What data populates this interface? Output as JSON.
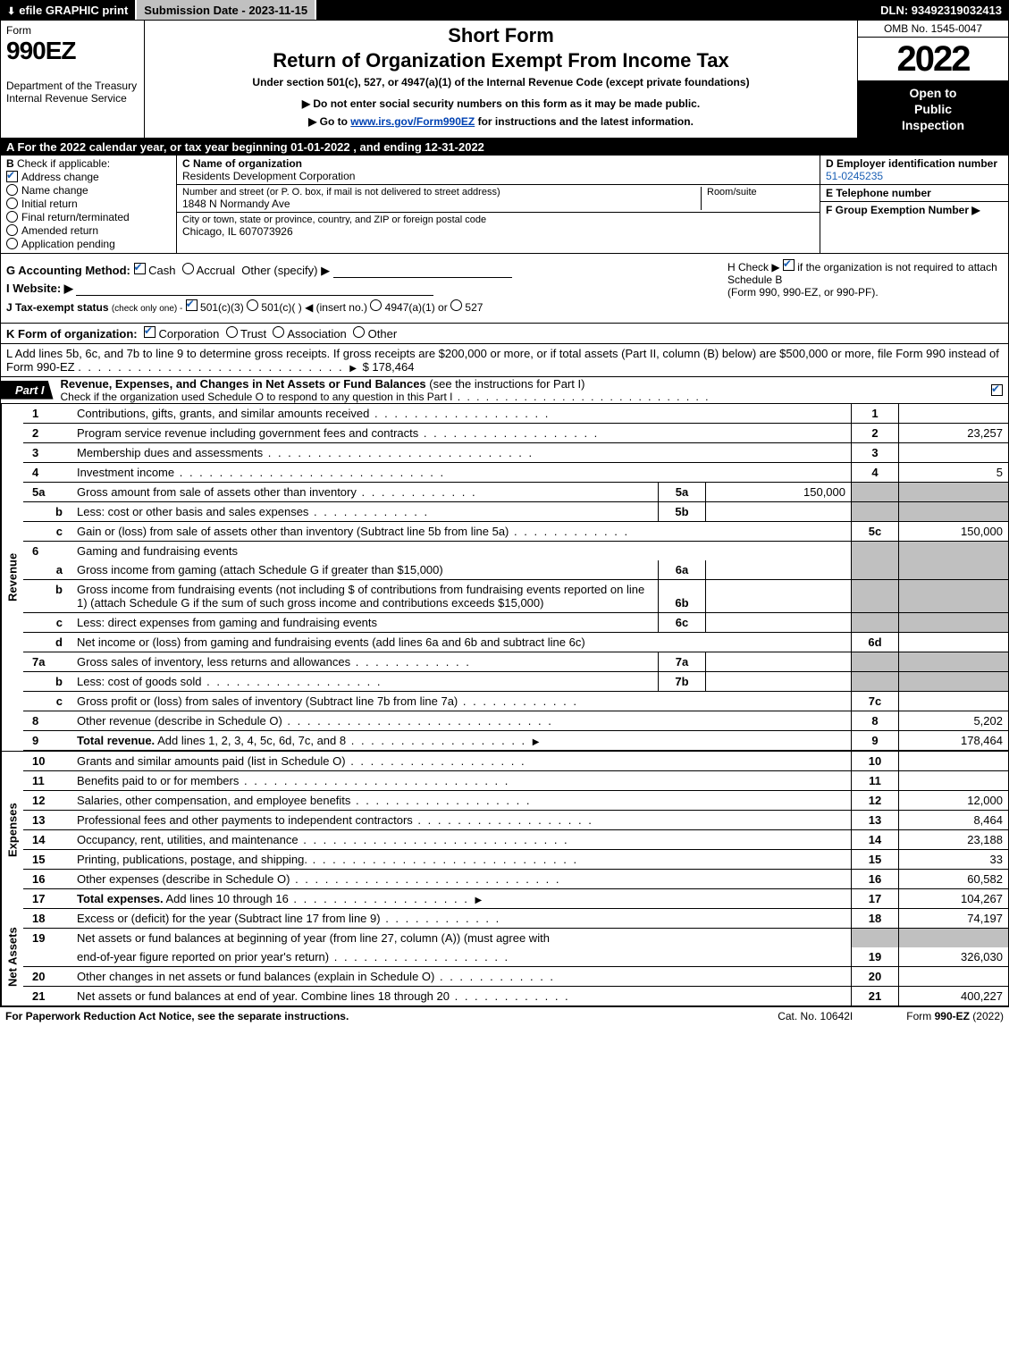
{
  "topbar": {
    "efile": "efile GRAPHIC print",
    "submission_label": "Submission Date - 2023-11-15",
    "dln": "DLN: 93492319032413"
  },
  "header": {
    "form_word": "Form",
    "form_num": "990EZ",
    "dept": "Department of the Treasury\nInternal Revenue Service",
    "short": "Short Form",
    "return_title": "Return of Organization Exempt From Income Tax",
    "under": "Under section 501(c), 527, or 4947(a)(1) of the Internal Revenue Code (except private foundations)",
    "note": "▶ Do not enter social security numbers on this form as it may be made public.",
    "goto_prefix": "▶ Go to ",
    "goto_link": "www.irs.gov/Form990EZ",
    "goto_suffix": " for instructions and the latest information.",
    "omb": "OMB No. 1545-0047",
    "year": "2022",
    "inspect1": "Open to",
    "inspect2": "Public",
    "inspect3": "Inspection"
  },
  "rowA": "A  For the 2022 calendar year, or tax year beginning 01-01-2022  , and ending 12-31-2022",
  "sectionB": {
    "hdr_b": "B",
    "hdr_txt": "Check if applicable:",
    "items": [
      {
        "label": "Address change",
        "checked": true
      },
      {
        "label": "Name change",
        "checked": false
      },
      {
        "label": "Initial return",
        "checked": false
      },
      {
        "label": "Final return/terminated",
        "checked": false
      },
      {
        "label": "Amended return",
        "checked": false
      },
      {
        "label": "Application pending",
        "checked": false
      }
    ]
  },
  "sectionC": {
    "c_label": "C Name of organization",
    "c_value": "Residents Development Corporation",
    "addr_label": "Number and street (or P. O. box, if mail is not delivered to street address)",
    "addr_value": "1848 N Normandy Ave",
    "room_label": "Room/suite",
    "city_label": "City or town, state or province, country, and ZIP or foreign postal code",
    "city_value": "Chicago, IL  607073926"
  },
  "sectionDEF": {
    "d_label": "D Employer identification number",
    "d_value": "51-0245235",
    "e_label": "E Telephone number",
    "f_label": "F Group Exemption Number   ▶"
  },
  "sectionG": {
    "g_label": "G Accounting Method:",
    "cash": "Cash",
    "accrual": "Accrual",
    "other": "Other (specify) ▶"
  },
  "sectionH": {
    "h_line1": "H   Check ▶",
    "h_line2": "if the organization is not required to attach Schedule B",
    "h_line3": "(Form 990, 990-EZ, or 990-PF)."
  },
  "sectionI": {
    "label": "I Website: ▶"
  },
  "sectionJ": {
    "prefix": "J Tax-exempt status",
    "note": "(check only one) -",
    "opt1": "501(c)(3)",
    "opt2": "501(c)(   ) ◀ (insert no.)",
    "opt3": "4947(a)(1) or",
    "opt4": "527"
  },
  "rowK": {
    "prefix": "K Form of organization:",
    "opts": [
      "Corporation",
      "Trust",
      "Association",
      "Other"
    ]
  },
  "rowL": {
    "text": "L Add lines 5b, 6c, and 7b to line 9 to determine gross receipts. If gross receipts are $200,000 or more, or if total assets (Part II, column (B) below) are $500,000 or more, file Form 990 instead of Form 990-EZ",
    "amount": "$ 178,464"
  },
  "part1": {
    "tab": "Part I",
    "title": "Revenue, Expenses, and Changes in Net Assets or Fund Balances (see the instructions for Part I)",
    "subtitle": "Check if the organization used Schedule O to respond to any question in this Part I"
  },
  "revenue_label": "Revenue",
  "expenses_label": "Expenses",
  "netassets_label": "Net Assets",
  "lines": {
    "l1": {
      "num": "1",
      "desc": "Contributions, gifts, grants, and similar amounts received",
      "rbox": "1",
      "rval": ""
    },
    "l2": {
      "num": "2",
      "desc": "Program service revenue including government fees and contracts",
      "rbox": "2",
      "rval": "23,257"
    },
    "l3": {
      "num": "3",
      "desc": "Membership dues and assessments",
      "rbox": "3",
      "rval": ""
    },
    "l4": {
      "num": "4",
      "desc": "Investment income",
      "rbox": "4",
      "rval": "5"
    },
    "l5a": {
      "num": "5a",
      "desc": "Gross amount from sale of assets other than inventory",
      "mbox": "5a",
      "mval": "150,000"
    },
    "l5b": {
      "num": "b",
      "desc": "Less: cost or other basis and sales expenses",
      "mbox": "5b",
      "mval": ""
    },
    "l5c": {
      "num": "c",
      "desc": "Gain or (loss) from sale of assets other than inventory (Subtract line 5b from line 5a)",
      "rbox": "5c",
      "rval": "150,000"
    },
    "l6": {
      "num": "6",
      "desc": "Gaming and fundraising events"
    },
    "l6a": {
      "num": "a",
      "desc": "Gross income from gaming (attach Schedule G if greater than $15,000)",
      "mbox": "6a",
      "mval": ""
    },
    "l6b": {
      "num": "b",
      "desc1": "Gross income from fundraising events (not including $",
      "desc2": "of contributions from fundraising events reported on line 1) (attach Schedule G if the sum of such gross income and contributions exceeds $15,000)",
      "mbox": "6b",
      "mval": ""
    },
    "l6c": {
      "num": "c",
      "desc": "Less: direct expenses from gaming and fundraising events",
      "mbox": "6c",
      "mval": ""
    },
    "l6d": {
      "num": "d",
      "desc": "Net income or (loss) from gaming and fundraising events (add lines 6a and 6b and subtract line 6c)",
      "rbox": "6d",
      "rval": ""
    },
    "l7a": {
      "num": "7a",
      "desc": "Gross sales of inventory, less returns and allowances",
      "mbox": "7a",
      "mval": ""
    },
    "l7b": {
      "num": "b",
      "desc": "Less: cost of goods sold",
      "mbox": "7b",
      "mval": ""
    },
    "l7c": {
      "num": "c",
      "desc": "Gross profit or (loss) from sales of inventory (Subtract line 7b from line 7a)",
      "rbox": "7c",
      "rval": ""
    },
    "l8": {
      "num": "8",
      "desc": "Other revenue (describe in Schedule O)",
      "rbox": "8",
      "rval": "5,202"
    },
    "l9": {
      "num": "9",
      "desc": "Total revenue. Add lines 1, 2, 3, 4, 5c, 6d, 7c, and 8",
      "rbox": "9",
      "rval": "178,464"
    },
    "l10": {
      "num": "10",
      "desc": "Grants and similar amounts paid (list in Schedule O)",
      "rbox": "10",
      "rval": ""
    },
    "l11": {
      "num": "11",
      "desc": "Benefits paid to or for members",
      "rbox": "11",
      "rval": ""
    },
    "l12": {
      "num": "12",
      "desc": "Salaries, other compensation, and employee benefits",
      "rbox": "12",
      "rval": "12,000"
    },
    "l13": {
      "num": "13",
      "desc": "Professional fees and other payments to independent contractors",
      "rbox": "13",
      "rval": "8,464"
    },
    "l14": {
      "num": "14",
      "desc": "Occupancy, rent, utilities, and maintenance",
      "rbox": "14",
      "rval": "23,188"
    },
    "l15": {
      "num": "15",
      "desc": "Printing, publications, postage, and shipping.",
      "rbox": "15",
      "rval": "33"
    },
    "l16": {
      "num": "16",
      "desc": "Other expenses (describe in Schedule O)",
      "rbox": "16",
      "rval": "60,582"
    },
    "l17": {
      "num": "17",
      "desc": "Total expenses. Add lines 10 through 16",
      "rbox": "17",
      "rval": "104,267"
    },
    "l18": {
      "num": "18",
      "desc": "Excess or (deficit) for the year (Subtract line 17 from line 9)",
      "rbox": "18",
      "rval": "74,197"
    },
    "l19": {
      "num": "19",
      "desc": "Net assets or fund balances at beginning of year (from line 27, column (A)) (must agree with end-of-year figure reported on prior year's return)",
      "rbox": "19",
      "rval": "326,030"
    },
    "l20": {
      "num": "20",
      "desc": "Other changes in net assets or fund balances (explain in Schedule O)",
      "rbox": "20",
      "rval": ""
    },
    "l21": {
      "num": "21",
      "desc": "Net assets or fund balances at end of year. Combine lines 18 through 20",
      "rbox": "21",
      "rval": "400,227"
    }
  },
  "footer": {
    "left": "For Paperwork Reduction Act Notice, see the separate instructions.",
    "mid": "Cat. No. 10642I",
    "right_prefix": "Form ",
    "right_bold": "990-EZ",
    "right_suffix": " (2022)"
  }
}
